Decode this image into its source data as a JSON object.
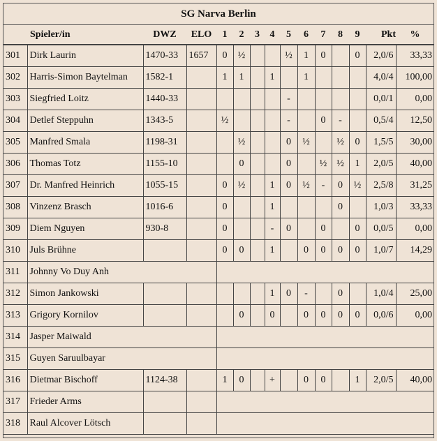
{
  "header": {
    "title": "SG Narva Berlin"
  },
  "table": {
    "columns": [
      null,
      "Spieler/in",
      "DWZ",
      "ELO",
      "1",
      "2",
      "3",
      "4",
      "5",
      "6",
      "7",
      "8",
      "9",
      "Pkt",
      "%"
    ],
    "rows": [
      [
        "301",
        "Dirk Laurin",
        "1470-33",
        "1657",
        "0",
        "½",
        null,
        null,
        "½",
        "1",
        "0",
        null,
        "0",
        "2,0/6",
        "33,33"
      ],
      [
        "302",
        "Harris-Simon Baytelman",
        "1582-1",
        null,
        "1",
        "1",
        null,
        "1",
        null,
        "1",
        null,
        null,
        null,
        "4,0/4",
        "100,00"
      ],
      [
        "303",
        "Siegfried Loitz",
        "1440-33",
        null,
        null,
        null,
        null,
        null,
        "-",
        null,
        null,
        null,
        null,
        "0,0/1",
        "0,00"
      ],
      [
        "304",
        "Detlef Steppuhn",
        "1343-5",
        null,
        "½",
        null,
        null,
        null,
        "-",
        null,
        "0",
        "-",
        null,
        "0,5/4",
        "12,50"
      ],
      [
        "305",
        "Manfred Smala",
        "1198-31",
        null,
        null,
        "½",
        null,
        null,
        "0",
        "½",
        null,
        "½",
        "0",
        "1,5/5",
        "30,00"
      ],
      [
        "306",
        "Thomas Totz",
        "1155-10",
        null,
        null,
        "0",
        null,
        null,
        "0",
        null,
        "½",
        "½",
        "1",
        "2,0/5",
        "40,00"
      ],
      [
        "307",
        "Dr. Manfred Heinrich",
        "1055-15",
        null,
        "0",
        "½",
        null,
        "1",
        "0",
        "½",
        "-",
        "0",
        "½",
        "2,5/8",
        "31,25"
      ],
      [
        "308",
        "Vinzenz Brasch",
        "1016-6",
        null,
        "0",
        null,
        null,
        "1",
        null,
        null,
        null,
        "0",
        null,
        "1,0/3",
        "33,33"
      ],
      [
        "309",
        "Diem Nguyen",
        "930-8",
        null,
        "0",
        null,
        null,
        "-",
        "0",
        null,
        "0",
        null,
        "0",
        "0,0/5",
        "0,00"
      ],
      [
        "310",
        "Juls Brühne",
        null,
        null,
        "0",
        "0",
        null,
        "1",
        null,
        "0",
        "0",
        "0",
        "0",
        "1,0/7",
        "14,29"
      ],
      [
        "311",
        "Johnny Vo Duy Anh"
      ],
      [
        "312",
        "Simon Jankowski",
        null,
        null,
        null,
        null,
        null,
        "1",
        "0",
        "-",
        null,
        "0",
        null,
        "1,0/4",
        "25,00"
      ],
      [
        "313",
        "Grigory Kornilov",
        null,
        null,
        null,
        "0",
        null,
        "0",
        null,
        "0",
        "0",
        "0",
        "0",
        "0,0/6",
        "0,00"
      ],
      [
        "314",
        "Jasper Maiwald"
      ],
      [
        "315",
        "Guyen Saruulbayar"
      ],
      [
        "316",
        "Dietmar Bischoff",
        "1124-38",
        null,
        "1",
        "0",
        null,
        "+",
        null,
        "0",
        "0",
        null,
        "1",
        "2,0/5",
        "40,00"
      ],
      [
        "317",
        "Frieder Arms",
        null,
        null
      ],
      [
        "318",
        "Raul Alcover Lötsch",
        null,
        null
      ]
    ]
  }
}
